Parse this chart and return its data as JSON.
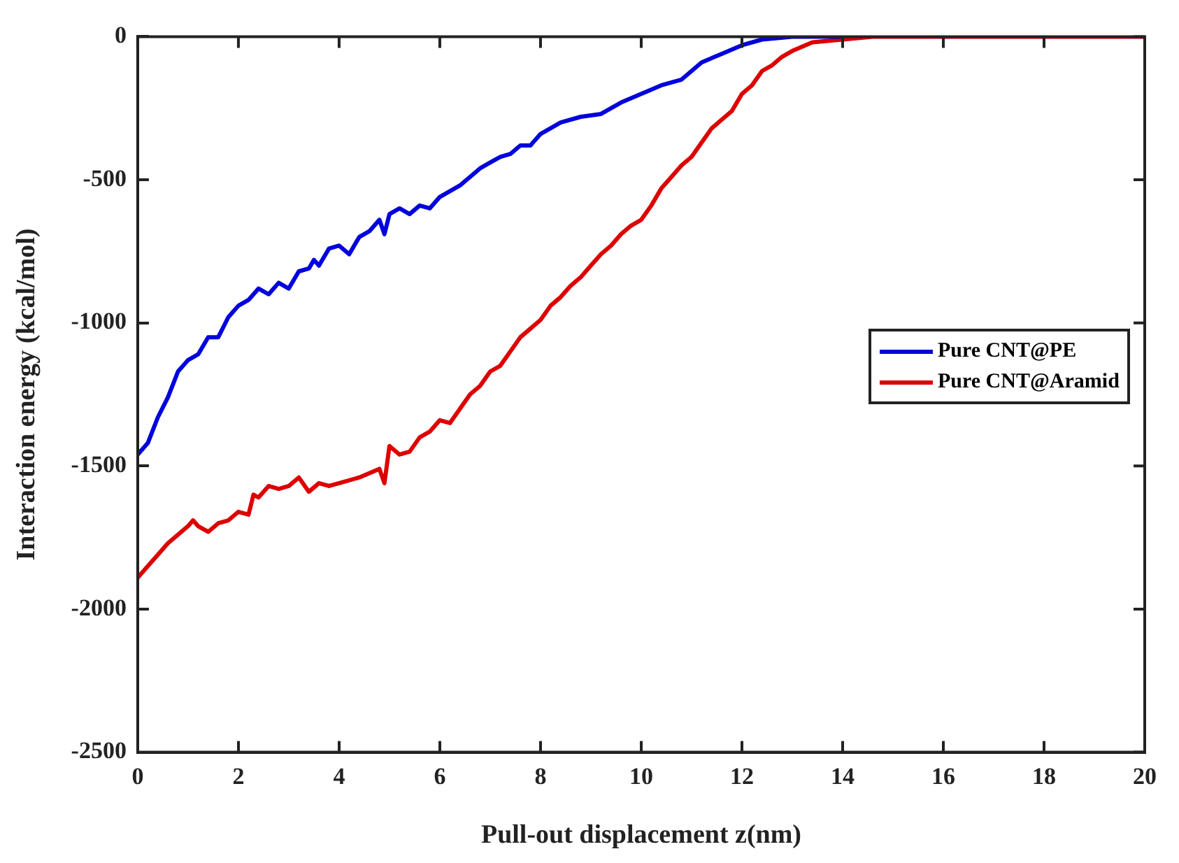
{
  "chart_data": {
    "type": "line",
    "xlabel": "Pull-out displacement z(nm)",
    "ylabel": "Interaction energy (kcal/mol)",
    "xlim": [
      0,
      20
    ],
    "xticks": [
      0,
      2,
      4,
      6,
      8,
      10,
      12,
      14,
      16,
      18,
      20
    ],
    "ylim": [
      -2500,
      0
    ],
    "yticks": [
      -2500,
      -2000,
      -1500,
      -1000,
      -500,
      0
    ],
    "grid": false,
    "legend": "right",
    "marker": "none",
    "line_style": "solid",
    "series": [
      {
        "name": "Pure CNT@PE",
        "color": "#0000dd",
        "x": [
          0,
          0.2,
          0.4,
          0.6,
          0.8,
          1.0,
          1.2,
          1.4,
          1.6,
          1.8,
          2.0,
          2.2,
          2.4,
          2.6,
          2.8,
          3.0,
          3.2,
          3.4,
          3.5,
          3.6,
          3.8,
          4.0,
          4.2,
          4.4,
          4.6,
          4.8,
          4.9,
          5.0,
          5.2,
          5.4,
          5.6,
          5.8,
          6.0,
          6.2,
          6.4,
          6.6,
          6.8,
          7.0,
          7.2,
          7.4,
          7.6,
          7.8,
          8.0,
          8.4,
          8.8,
          9.2,
          9.6,
          10.0,
          10.4,
          10.8,
          11.2,
          11.6,
          12.0,
          12.4,
          13,
          14
        ],
        "values": [
          -1460,
          -1420,
          -1330,
          -1260,
          -1170,
          -1130,
          -1110,
          -1050,
          -1050,
          -980,
          -940,
          -920,
          -880,
          -900,
          -860,
          -880,
          -820,
          -810,
          -780,
          -800,
          -740,
          -730,
          -760,
          -700,
          -680,
          -640,
          -690,
          -620,
          -600,
          -620,
          -590,
          -600,
          -560,
          -540,
          -520,
          -490,
          -460,
          -440,
          -420,
          -410,
          -380,
          -380,
          -340,
          -300,
          -280,
          -270,
          -230,
          -200,
          -170,
          -150,
          -90,
          -60,
          -30,
          -10,
          0,
          0
        ]
      },
      {
        "name": "Pure CNT@Aramid",
        "color": "#dd0000",
        "x": [
          0,
          0.2,
          0.4,
          0.6,
          0.8,
          1.0,
          1.1,
          1.2,
          1.4,
          1.6,
          1.8,
          2.0,
          2.2,
          2.3,
          2.4,
          2.6,
          2.8,
          3.0,
          3.2,
          3.4,
          3.6,
          3.8,
          4.0,
          4.4,
          4.8,
          4.9,
          5.0,
          5.2,
          5.4,
          5.6,
          5.8,
          6.0,
          6.2,
          6.4,
          6.6,
          6.8,
          7.0,
          7.2,
          7.4,
          7.6,
          7.8,
          8.0,
          8.2,
          8.4,
          8.6,
          8.8,
          9.0,
          9.2,
          9.4,
          9.6,
          9.8,
          10.0,
          10.2,
          10.4,
          10.6,
          10.8,
          11.0,
          11.2,
          11.4,
          11.6,
          11.8,
          12.0,
          12.2,
          12.4,
          12.6,
          12.8,
          13.0,
          13.4,
          14,
          14.6,
          16,
          20
        ],
        "values": [
          -1890,
          -1850,
          -1810,
          -1770,
          -1740,
          -1710,
          -1690,
          -1710,
          -1730,
          -1700,
          -1690,
          -1660,
          -1670,
          -1600,
          -1610,
          -1570,
          -1580,
          -1570,
          -1540,
          -1590,
          -1560,
          -1570,
          -1560,
          -1540,
          -1510,
          -1560,
          -1430,
          -1460,
          -1450,
          -1400,
          -1380,
          -1340,
          -1350,
          -1300,
          -1250,
          -1220,
          -1170,
          -1150,
          -1100,
          -1050,
          -1020,
          -990,
          -940,
          -910,
          -870,
          -840,
          -800,
          -760,
          -730,
          -690,
          -660,
          -640,
          -590,
          -530,
          -490,
          -450,
          -420,
          -370,
          -320,
          -290,
          -260,
          -200,
          -170,
          -120,
          -100,
          -70,
          -50,
          -20,
          -10,
          0,
          0,
          0
        ]
      }
    ]
  }
}
